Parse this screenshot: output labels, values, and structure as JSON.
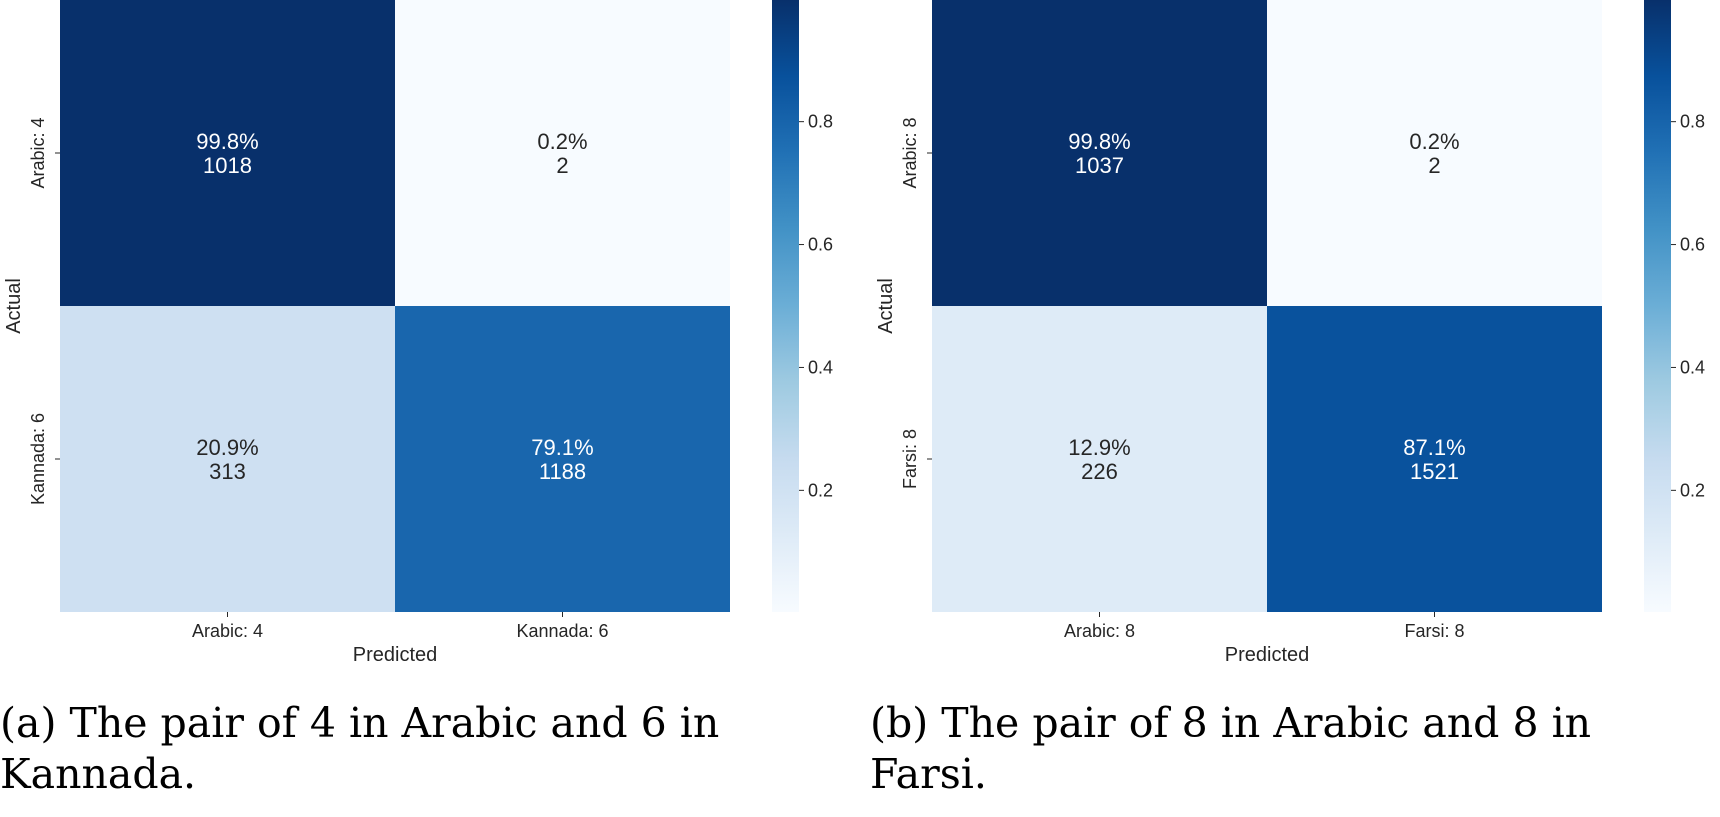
{
  "chart_data": [
    {
      "type": "heatmap",
      "xlabel": "Predicted",
      "ylabel": "Actual",
      "x_categories": [
        "Arabic: 4",
        "Kannada: 6"
      ],
      "y_categories": [
        "Arabic: 4",
        "Kannada: 6"
      ],
      "cells": [
        [
          {
            "percent": "99.8%",
            "count": "1018",
            "value": 0.998
          },
          {
            "percent": "0.2%",
            "count": "2",
            "value": 0.002
          }
        ],
        [
          {
            "percent": "20.9%",
            "count": "313",
            "value": 0.209
          },
          {
            "percent": "79.1%",
            "count": "1188",
            "value": 0.791
          }
        ]
      ],
      "colorbar": {
        "ticks": [
          "0.2",
          "0.4",
          "0.6",
          "0.8"
        ],
        "tick_values": [
          0.2,
          0.4,
          0.6,
          0.8
        ],
        "range": [
          0.002,
          0.998
        ],
        "colormap": "Blues"
      }
    },
    {
      "type": "heatmap",
      "xlabel": "Predicted",
      "ylabel": "Actual",
      "x_categories": [
        "Arabic: 8",
        "Farsi: 8"
      ],
      "y_categories": [
        "Arabic: 8",
        "Farsi: 8"
      ],
      "cells": [
        [
          {
            "percent": "99.8%",
            "count": "1037",
            "value": 0.998
          },
          {
            "percent": "0.2%",
            "count": "2",
            "value": 0.002
          }
        ],
        [
          {
            "percent": "12.9%",
            "count": "226",
            "value": 0.129
          },
          {
            "percent": "87.1%",
            "count": "1521",
            "value": 0.871
          }
        ]
      ],
      "colorbar": {
        "ticks": [
          "0.2",
          "0.4",
          "0.6",
          "0.8"
        ],
        "tick_values": [
          0.2,
          0.4,
          0.6,
          0.8
        ],
        "range": [
          0.002,
          0.998
        ],
        "colormap": "Blues"
      }
    }
  ],
  "captions": {
    "a": "(a) The pair of 4 in Arabic and 6 in Kannada.",
    "b": "(b) The pair of 8 in Arabic and 8 in Farsi."
  }
}
